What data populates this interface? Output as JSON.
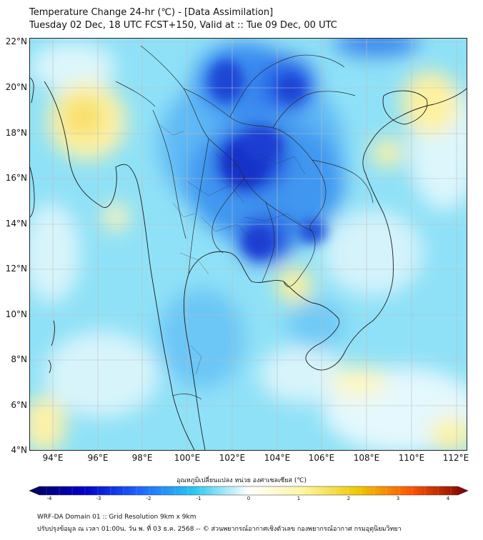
{
  "title_line1": "Temperature Change 24-hr (℃) - [Data Assimilation]",
  "title_line2": "Tuesday 02 Dec, 18 UTC FCST+150, Valid at :: Tue 09 Dec, 00 UTC",
  "lat_labels": [
    "22°N",
    "20°N",
    "18°N",
    "16°N",
    "14°N",
    "12°N",
    "10°N",
    "8°N",
    "6°N",
    "4°N"
  ],
  "lon_labels": [
    "94°E",
    "96°E",
    "98°E",
    "100°E",
    "102°E",
    "104°E",
    "106°E",
    "108°E",
    "110°E",
    "112°E"
  ],
  "colorbar_title": "อุณหภูมิเปลี่ยนแปลง หน่วย องศาเซลเซียส (℃)",
  "colorbar_ticks": [
    "-4",
    "-3",
    "-2",
    "-1",
    "0",
    "1",
    "2",
    "3",
    "4"
  ],
  "footer_line1": "WRF-DA Domain 01 :: Grid Resolution 9km x 9km",
  "footer_line2": "ปรับปรุงข้อมูล ณ เวลา 01:00น. วัน พ. ที่ 03 ธ.ค. 2568 -- © ส่วนพยากรณ์อากาศเชิงตัวเลข กองพยากรณ์อากาศ กรมอุตุนิยมวิทยา",
  "colors": {
    "neg4": "#00005a",
    "neg3": "#0000c8",
    "neg2": "#1e64ff",
    "neg1": "#28c8f0",
    "zero": "#ffffff",
    "pos1": "#fff5a0",
    "pos2": "#f0c800",
    "pos3": "#ff5000",
    "pos4": "#780000"
  }
}
